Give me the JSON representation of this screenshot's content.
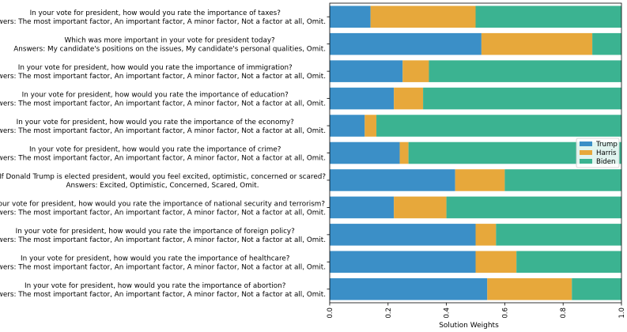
{
  "chart_data": {
    "type": "bar",
    "orientation": "horizontal",
    "stacked": true,
    "title": "",
    "xlabel": "Solution Weights",
    "ylabel": "",
    "xlim": [
      0,
      1
    ],
    "xticks": [
      "0.0",
      "0.2",
      "0.4",
      "0.6",
      "0.8",
      "1.0"
    ],
    "grid": false,
    "legend_position": "center-right",
    "colors": {
      "Trump": "#3b8fc7",
      "Harris": "#e7a83b",
      "Biden": "#3bb391"
    },
    "categories": [
      {
        "question": "In your vote for president, how would you rate the importance of taxes?",
        "answers": "Answers: The most important factor, An important factor, A minor factor, Not a factor at all, Omit."
      },
      {
        "question": "Which was more important in your vote for president today?",
        "answers": "Answers: My candidate's positions on the issues, My candidate's personal qualities, Omit."
      },
      {
        "question": "In your vote for president, how would you rate the importance of immigration?",
        "answers": "Answers: The most important factor, An important factor, A minor factor, Not a factor at all, Omit."
      },
      {
        "question": "In your vote for president, how would you rate the importance of education?",
        "answers": "Answers: The most important factor, An important factor, A minor factor, Not a factor at all, Omit."
      },
      {
        "question": "In your vote for president, how would you rate the importance of the economy?",
        "answers": "Answers: The most important factor, An important factor, A minor factor, Not a factor at all, Omit."
      },
      {
        "question": "In your vote for president, how would you rate the importance of crime?",
        "answers": "Answers: The most important factor, An important factor, A minor factor, Not a factor at all, Omit."
      },
      {
        "question": "If Donald Trump is elected president, would you feel excited, optimistic, concerned or scared?",
        "answers": "Answers: Excited, Optimistic, Concerned, Scared, Omit."
      },
      {
        "question": "In your vote for president, how would you rate the importance of national security and terrorism?",
        "answers": "Answers: The most important factor, An important factor, A minor factor, Not a factor at all, Omit."
      },
      {
        "question": "In your vote for president, how would you rate the importance of foreign policy?",
        "answers": "Answers: The most important factor, An important factor, A minor factor, Not a factor at all, Omit."
      },
      {
        "question": "In your vote for president, how would you rate the importance of healthcare?",
        "answers": "Answers: The most important factor, An important factor, A minor factor, Not a factor at all, Omit."
      },
      {
        "question": "In your vote for president, how would you rate the importance of abortion?",
        "answers": "Answers: The most important factor, An important factor, A minor factor, Not a factor at all, Omit."
      }
    ],
    "series": [
      {
        "name": "Trump",
        "values": [
          0.14,
          0.52,
          0.25,
          0.22,
          0.12,
          0.24,
          0.43,
          0.22,
          0.5,
          0.5,
          0.54
        ]
      },
      {
        "name": "Harris",
        "values": [
          0.36,
          0.38,
          0.09,
          0.1,
          0.04,
          0.03,
          0.17,
          0.18,
          0.07,
          0.14,
          0.29
        ]
      },
      {
        "name": "Biden",
        "values": [
          0.5,
          0.1,
          0.66,
          0.68,
          0.84,
          0.73,
          0.4,
          0.6,
          0.43,
          0.36,
          0.17
        ]
      }
    ]
  }
}
